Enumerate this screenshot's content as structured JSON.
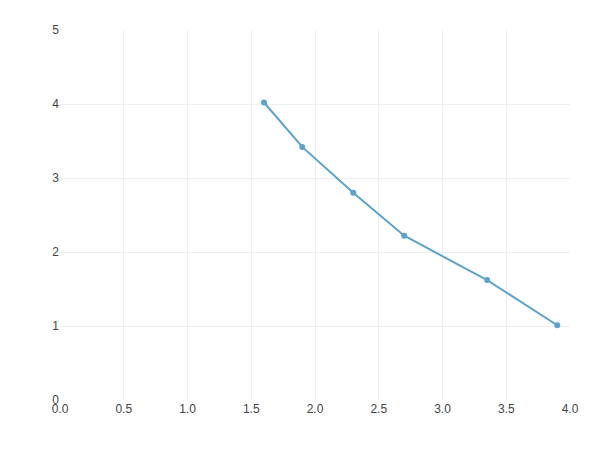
{
  "chart_data": {
    "type": "line",
    "x": [
      1.6,
      1.9,
      2.3,
      2.7,
      3.35,
      3.9
    ],
    "values": [
      4.02,
      3.42,
      2.8,
      2.22,
      1.62,
      1.01
    ],
    "color": "#5ba3c9",
    "marker": "circle",
    "line_style": "solid",
    "xlim": [
      0.0,
      4.0
    ],
    "ylim": [
      0,
      5
    ],
    "xticks": [
      {
        "value": 0.0,
        "label": "0.0"
      },
      0.5,
      {
        "value": 1.0,
        "label": "1.0"
      },
      1.5,
      {
        "value": 2.0,
        "label": "2.0"
      },
      2.5,
      {
        "value": 3.0,
        "label": "3.0"
      },
      3.5,
      {
        "value": 4.0,
        "label": "4.0"
      }
    ],
    "yticks": [
      0,
      1,
      2,
      3,
      4,
      5
    ],
    "grid": true
  }
}
